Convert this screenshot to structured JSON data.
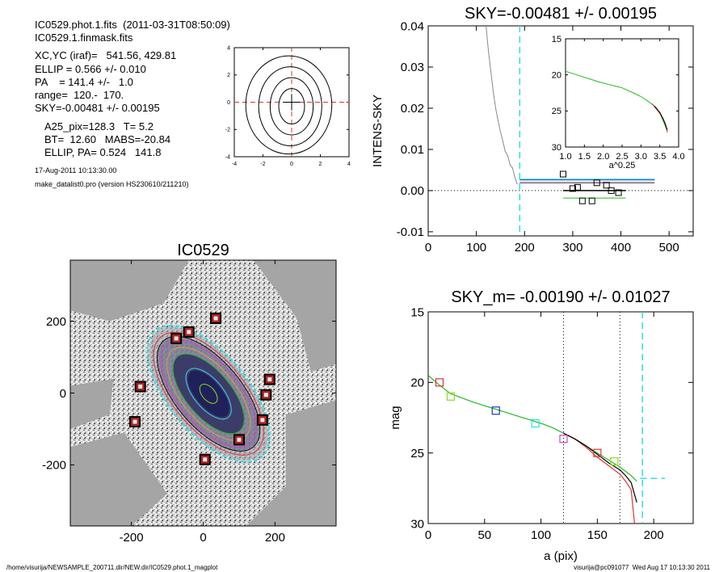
{
  "header": {
    "line1": "IC0529.phot.1.fits  (2011-03-31T08:50:09)",
    "line2": "IC0529.1.finmask.fits",
    "xcyc": "XC,YC (iraf)=   541.56, 429.81",
    "ellip": "ELLIP = 0.566 +/- 0.010",
    "pa": "PA    = 141.4 +/-   1.0",
    "range": "range=  120.-  170.",
    "sky": "SKY=-0.00481 +/- 0.00195",
    "a25": "A25_pix=128.3   T= 5.2",
    "bt": "BT=  12.60   MABS=-20.84",
    "ellip2": "ELLIP, PA= 0.524   141.8",
    "date": "17-Aug-2011 10:13:30.00",
    "prog": "make_datalist0.pro (version HS230610/211210)"
  },
  "footer": {
    "path": "/home/visurija/NEWSAMPLE_200711.dir/NEW.dir/IC0529.phot.1_magplot",
    "user": "visurija@pc091077  Wed Aug 17 10:13:30 2011"
  },
  "colors": {
    "cyan": "#33dddd",
    "green": "#22bb22",
    "red": "#dd3333",
    "magenta": "#cc44cc",
    "blue": "#2233cc",
    "lime": "#88dd22",
    "gray": "#888888"
  },
  "chart_data": [
    {
      "id": "contour",
      "type": "contour",
      "title": "",
      "xlim": [
        -4,
        4
      ],
      "ylim": [
        -4,
        4
      ],
      "xticks": [
        "-4",
        "-2",
        "0",
        "2",
        "4"
      ],
      "yticks": [
        "-4",
        "-2",
        "0",
        "2",
        "4"
      ]
    },
    {
      "id": "image",
      "type": "image",
      "title": "IC0529",
      "xlim": [
        -370,
        370
      ],
      "ylim": [
        -370,
        370
      ],
      "xticks": [
        "-200",
        "0",
        "200"
      ],
      "yticks": [
        "-200",
        "0",
        "200"
      ],
      "markers": [
        [
          35,
          208
        ],
        [
          -40,
          170
        ],
        [
          -75,
          152
        ],
        [
          -175,
          18
        ],
        [
          185,
          38
        ],
        [
          175,
          -5
        ],
        [
          -190,
          -80
        ],
        [
          165,
          -75
        ],
        [
          100,
          -130
        ],
        [
          5,
          -185
        ]
      ]
    },
    {
      "id": "sky",
      "type": "line",
      "title": "SKY=-0.00481 +/- 0.00195",
      "xlabel": "",
      "ylabel": "INTENS-SKY",
      "xlim": [
        0,
        550
      ],
      "ylim": [
        -0.011,
        0.04
      ],
      "xticks": [
        "0",
        "100",
        "200",
        "300",
        "400",
        "500"
      ],
      "yticks": [
        "-0.01",
        "0.00",
        "0.01",
        "0.02",
        "0.03",
        "0.04"
      ],
      "vline": 190,
      "series": [
        {
          "color": "gray",
          "x": [
            120,
            125,
            130,
            135,
            140,
            145,
            150,
            155,
            160,
            165,
            170,
            175,
            180,
            183,
            185
          ],
          "y": [
            0.04,
            0.034,
            0.029,
            0.024,
            0.02,
            0.017,
            0.0142,
            0.012,
            0.0095,
            0.0085,
            0.0062,
            0.0055,
            0.0032,
            0.0022,
            0.0015
          ]
        },
        {
          "color": "cyan",
          "x": [
            190,
            470
          ],
          "y": [
            0.0028,
            0.0028
          ]
        },
        {
          "color": "green",
          "x": [
            190,
            470
          ],
          "y": [
            0.002,
            0.002
          ]
        },
        {
          "color": "blue",
          "x": [
            190,
            470
          ],
          "y": [
            0.0026,
            0.0026
          ]
        },
        {
          "color": "magenta",
          "x": [
            190,
            470
          ],
          "y": [
            0.0018,
            0.0018
          ]
        },
        {
          "color": "black",
          "x": [
            280,
            410
          ],
          "y": [
            0.0,
            0.0
          ]
        },
        {
          "color": "green",
          "x": [
            280,
            410
          ],
          "y": [
            -0.0018,
            -0.0018
          ]
        }
      ],
      "squares": [
        [
          280,
          0.004
        ],
        [
          300,
          0.0005
        ],
        [
          310,
          0.0008
        ],
        [
          320,
          -0.0025
        ],
        [
          340,
          -0.0025
        ],
        [
          350,
          0.0019
        ],
        [
          370,
          0.0013
        ],
        [
          380,
          0.0
        ],
        [
          395,
          -0.0005
        ]
      ],
      "inset": {
        "xlabel": "a^0.25",
        "xlim": [
          1.0,
          4.0
        ],
        "ylim": [
          15,
          30
        ],
        "xticks": [
          "1.0",
          "1.5",
          "2.0",
          "2.5",
          "3.0",
          "3.5",
          "4.0"
        ],
        "yticks": [
          "15",
          "20",
          "25",
          "30"
        ],
        "x": [
          1.0,
          1.3,
          1.6,
          1.9,
          2.2,
          2.5,
          2.8,
          3.0,
          3.2,
          3.4,
          3.5,
          3.6,
          3.7
        ],
        "y": [
          19.5,
          20.0,
          20.5,
          21.0,
          21.4,
          21.8,
          22.5,
          23.0,
          23.7,
          24.5,
          25.3,
          26.5,
          27.8
        ]
      }
    },
    {
      "id": "mag",
      "type": "line",
      "title": "SKY_m= -0.00190 +/- 0.01027",
      "xlabel": "a (pix)",
      "ylabel": "mag",
      "xlim": [
        0,
        235
      ],
      "ylim": [
        15,
        30
      ],
      "xticks": [
        "0",
        "50",
        "100",
        "150",
        "200"
      ],
      "yticks": [
        "15",
        "20",
        "25",
        "30"
      ],
      "vlines_dotted": [
        120,
        170
      ],
      "vline_cyan": 190,
      "series": [
        {
          "color": "green",
          "x": [
            0,
            10,
            20,
            40,
            60,
            80,
            100,
            110,
            120,
            130,
            140,
            150,
            160,
            170,
            175,
            180,
            185
          ],
          "y": [
            19.5,
            20.2,
            20.8,
            21.4,
            21.9,
            22.4,
            22.9,
            23.2,
            23.6,
            24.0,
            24.5,
            25.0,
            25.5,
            26.0,
            26.3,
            26.6,
            27.0
          ]
        },
        {
          "color": "red",
          "x": [
            120,
            130,
            140,
            150,
            160,
            170,
            175,
            180,
            183
          ],
          "y": [
            23.6,
            24.0,
            24.6,
            25.3,
            25.9,
            26.5,
            27.0,
            27.6,
            30.0
          ]
        },
        {
          "color": "black",
          "x": [
            120,
            130,
            140,
            150,
            160,
            170,
            175,
            180,
            185
          ],
          "y": [
            23.6,
            24.0,
            24.5,
            25.1,
            25.7,
            26.2,
            26.6,
            27.1,
            28.5
          ]
        }
      ],
      "cyan_dash": {
        "x": [
          188,
          210
        ],
        "y": [
          26.8,
          26.8
        ]
      },
      "squares": [
        {
          "x": 10,
          "y": 20.0,
          "color": "red"
        },
        {
          "x": 20,
          "y": 21.0,
          "color": "lime"
        },
        {
          "x": 60,
          "y": 22.0,
          "color": "blue"
        },
        {
          "x": 95,
          "y": 22.9,
          "color": "cyan"
        },
        {
          "x": 120,
          "y": 24.0,
          "color": "magenta"
        },
        {
          "x": 150,
          "y": 25.0,
          "color": "red"
        },
        {
          "x": 165,
          "y": 25.6,
          "color": "lime"
        }
      ]
    }
  ]
}
